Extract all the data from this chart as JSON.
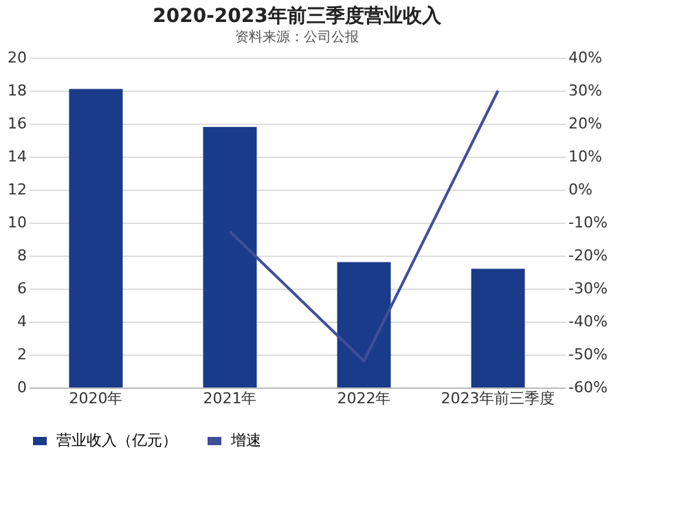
{
  "chart_data": {
    "type": "bar",
    "title": "2020-2023年前三季度营业收入",
    "categories": [
      "2020年",
      "2021年",
      "2022年",
      "2023年前三季度"
    ],
    "series": [
      {
        "name": "营业收入（亿元）",
        "color": "#1a3a8a",
        "values": [
          18.1,
          15.8,
          7.6,
          7.2
        ]
      },
      {
        "name": "增速",
        "type": "line",
        "axis": "y2",
        "color": "#3f4f9a",
        "values": [
          null,
          -12.7,
          -52,
          30
        ]
      }
    ],
    "ylim": [
      0,
      20
    ],
    "yticks": [
      0,
      2,
      4,
      6,
      8,
      10,
      12,
      14,
      16,
      18,
      20
    ],
    "y2lim": [
      -60,
      40
    ],
    "y2ticks": [
      {
        "value": -60,
        "label": "-60%"
      },
      {
        "value": -50,
        "label": "-50%"
      },
      {
        "value": -40,
        "label": "-40%"
      },
      {
        "value": -30,
        "label": "-30%"
      },
      {
        "value": -20,
        "label": "-20%"
      },
      {
        "value": -10,
        "label": "-10%"
      },
      {
        "value": 0,
        "label": "0%"
      },
      {
        "value": 10,
        "label": "10%"
      },
      {
        "value": 20,
        "label": "20%"
      },
      {
        "value": 30,
        "label": "30%"
      },
      {
        "value": 40,
        "label": "40%"
      }
    ],
    "grid": "y",
    "legend": "bottom",
    "marker": "none",
    "line_style": "solid",
    "annotations": [
      "资料来源：公司公报"
    ]
  }
}
